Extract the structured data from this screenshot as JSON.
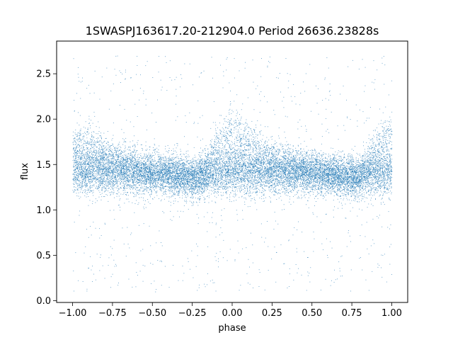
{
  "chart_data": {
    "type": "scatter",
    "title": "1SWASPJ163617.20-212904.0 Period 26636.23828s",
    "xlabel": "phase",
    "ylabel": "flux",
    "xlim": [
      -1.1,
      1.1
    ],
    "ylim": [
      -0.02,
      2.86
    ],
    "xticks": [
      -1.0,
      -0.75,
      -0.5,
      -0.25,
      0.0,
      0.25,
      0.5,
      0.75,
      1.0
    ],
    "xtick_labels": [
      "−1.00",
      "−0.75",
      "−0.50",
      "−0.25",
      "0.00",
      "0.25",
      "0.50",
      "0.75",
      "1.00"
    ],
    "yticks": [
      0.0,
      0.5,
      1.0,
      1.5,
      2.0,
      2.5
    ],
    "ytick_labels": [
      "0.0",
      "0.5",
      "1.0",
      "1.5",
      "2.0",
      "2.5"
    ],
    "grid": false,
    "point_color": "#1f77b4",
    "series": [
      {
        "phase_range": [
          -1.0,
          1.0
        ],
        "approx_point_count": 16000,
        "profile": [
          {
            "x": -1.0,
            "y_upper": 1.9,
            "y_lower": 1.4
          },
          {
            "x": -0.75,
            "y_upper": 1.65,
            "y_lower": 1.4
          },
          {
            "x": -0.5,
            "y_upper": 1.45,
            "y_lower": 1.4
          },
          {
            "x": -0.25,
            "y_upper": 1.4,
            "y_lower": 1.35
          },
          {
            "x": 0.0,
            "y_upper": 2.0,
            "y_lower": 1.4
          },
          {
            "x": 0.25,
            "y_upper": 1.65,
            "y_lower": 1.4
          },
          {
            "x": 0.5,
            "y_upper": 1.45,
            "y_lower": 1.4
          },
          {
            "x": 0.75,
            "y_upper": 1.4,
            "y_lower": 1.35
          },
          {
            "x": 1.0,
            "y_upper": 1.95,
            "y_lower": 1.4
          }
        ]
      }
    ]
  }
}
